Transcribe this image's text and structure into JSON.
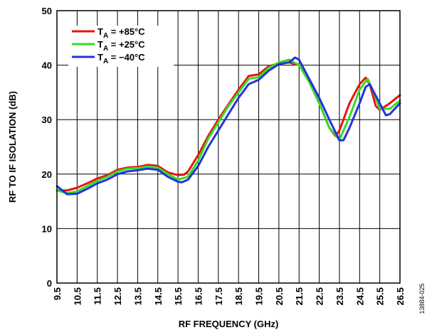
{
  "chart_data": {
    "type": "line",
    "xlabel": "RF FREQUENCY (GHz)",
    "ylabel": "RF TO IF ISOLATION (dB)",
    "xlim": [
      9.5,
      26.5
    ],
    "ylim": [
      0,
      50
    ],
    "x_ticks": [
      "9.5",
      "10.5",
      "11.5",
      "12.5",
      "13.5",
      "14.5",
      "15.5",
      "16.5",
      "17.5",
      "18.5",
      "19.5",
      "20.5",
      "21.5",
      "22.5",
      "23.5",
      "24.5",
      "25.5",
      "26.5"
    ],
    "y_ticks": [
      "0",
      "10",
      "20",
      "30",
      "40",
      "50"
    ],
    "grid": true,
    "legend_position": "top-left",
    "figure_id": "13884-025",
    "series": [
      {
        "name": "+85°C",
        "legend_prefix": "T",
        "legend_sub": "A",
        "legend_suffix": " = +85°C",
        "color": "#ee1111",
        "x": [
          9.5,
          10.0,
          10.5,
          11.0,
          11.5,
          12.0,
          12.5,
          13.0,
          13.5,
          14.0,
          14.5,
          15.0,
          15.5,
          15.8,
          16.0,
          16.5,
          17.0,
          17.5,
          18.0,
          18.5,
          19.0,
          19.5,
          20.0,
          20.5,
          21.0,
          21.5,
          22.0,
          22.5,
          23.0,
          23.3,
          23.5,
          24.0,
          24.5,
          24.8,
          25.0,
          25.3,
          25.5,
          26.0,
          26.5
        ],
        "y": [
          17.0,
          17.0,
          17.5,
          18.3,
          19.2,
          19.8,
          20.8,
          21.2,
          21.3,
          21.7,
          21.5,
          20.3,
          19.8,
          19.9,
          20.5,
          23.5,
          27.0,
          30.0,
          32.8,
          35.5,
          38.0,
          38.3,
          39.8,
          40.3,
          40.5,
          40.0,
          37.0,
          33.0,
          28.5,
          27.0,
          28.0,
          33.0,
          36.5,
          37.7,
          36.5,
          32.5,
          31.8,
          33.0,
          34.5
        ]
      },
      {
        "name": "+25°C",
        "legend_prefix": "T",
        "legend_sub": "A",
        "legend_suffix": " = +25°C",
        "color": "#33dd22",
        "x": [
          9.5,
          10.0,
          10.5,
          11.0,
          11.5,
          12.0,
          12.5,
          13.0,
          13.5,
          14.0,
          14.5,
          15.0,
          15.5,
          16.0,
          16.5,
          17.0,
          17.5,
          18.0,
          18.5,
          19.0,
          19.5,
          20.0,
          20.5,
          21.0,
          21.5,
          22.0,
          22.5,
          23.0,
          23.5,
          24.0,
          24.5,
          24.9,
          25.2,
          25.5,
          26.0,
          26.5
        ],
        "y": [
          17.0,
          16.5,
          16.8,
          17.8,
          18.8,
          19.5,
          20.5,
          21.0,
          21.1,
          21.4,
          21.2,
          20.0,
          19.0,
          19.5,
          22.5,
          26.5,
          29.5,
          32.5,
          35.0,
          37.5,
          37.8,
          39.5,
          40.5,
          41.0,
          40.0,
          37.0,
          33.0,
          28.5,
          26.3,
          30.5,
          35.5,
          37.5,
          35.0,
          32.0,
          32.0,
          33.5
        ]
      },
      {
        "name": "-40°C",
        "legend_prefix": "T",
        "legend_sub": "A",
        "legend_suffix": " = −40°C",
        "color": "#2233dd",
        "x": [
          9.5,
          10.0,
          10.5,
          11.0,
          11.5,
          12.0,
          12.5,
          13.0,
          13.5,
          14.0,
          14.5,
          15.0,
          15.5,
          15.7,
          16.0,
          16.5,
          17.0,
          17.5,
          18.0,
          18.5,
          19.0,
          19.5,
          20.0,
          20.5,
          21.0,
          21.3,
          21.5,
          22.0,
          22.5,
          23.0,
          23.5,
          23.7,
          24.0,
          24.5,
          24.8,
          25.0,
          25.5,
          25.8,
          26.0,
          26.5
        ],
        "y": [
          17.8,
          16.3,
          16.4,
          17.3,
          18.3,
          19.0,
          20.0,
          20.5,
          20.7,
          21.0,
          20.8,
          19.5,
          18.6,
          18.5,
          19.0,
          21.5,
          25.0,
          28.0,
          31.0,
          34.0,
          36.5,
          37.3,
          39.0,
          40.2,
          40.5,
          41.4,
          41.0,
          37.5,
          34.0,
          30.0,
          26.2,
          26.2,
          28.5,
          33.0,
          36.0,
          36.5,
          33.0,
          30.8,
          31.0,
          33.0
        ]
      }
    ]
  }
}
